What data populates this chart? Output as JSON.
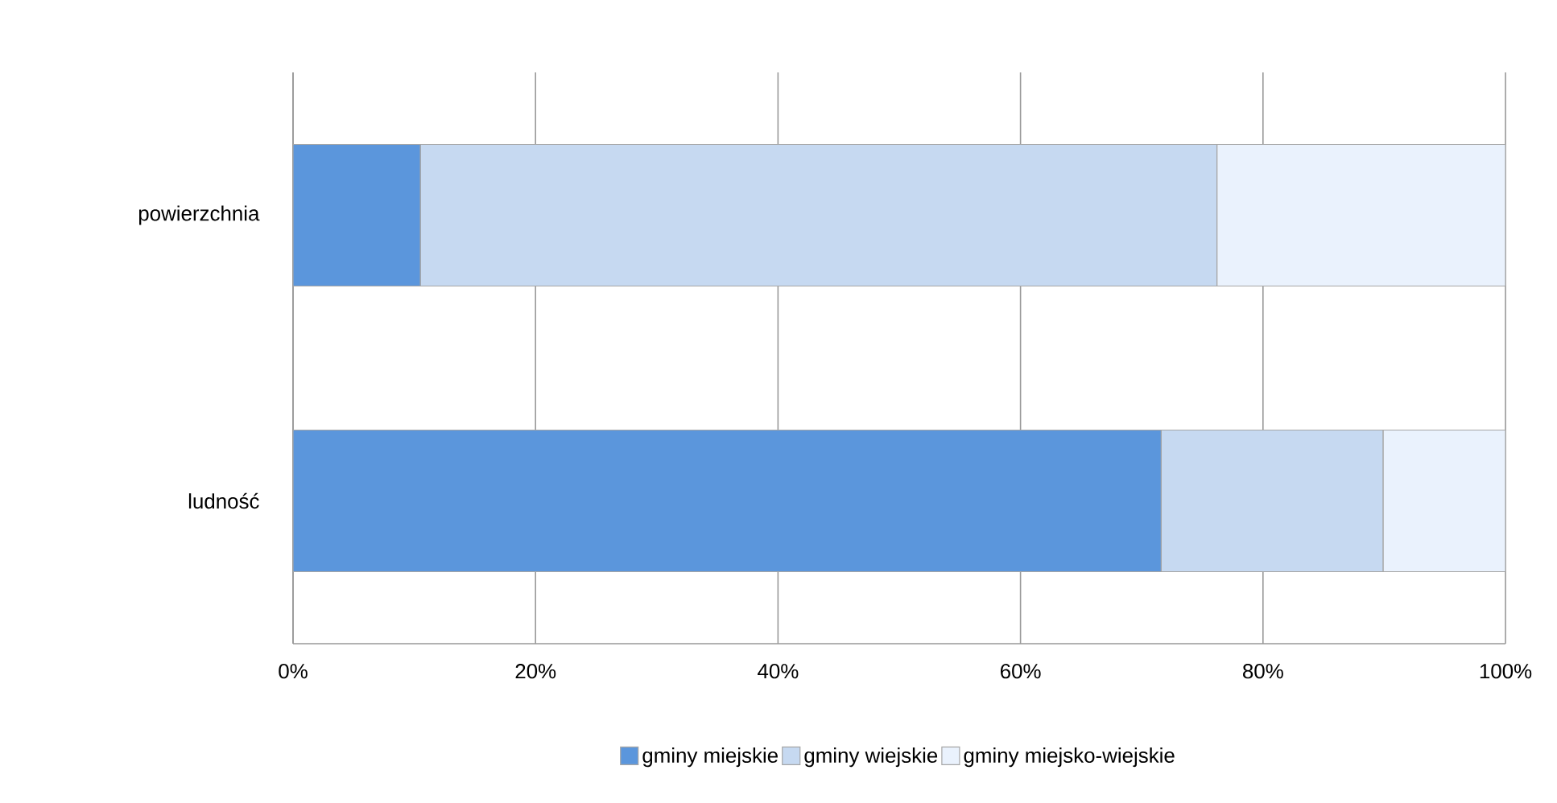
{
  "chart_data": {
    "type": "bar",
    "orientation": "horizontal",
    "stacked": true,
    "categories": [
      "powierzchnia",
      "ludność"
    ],
    "series": [
      {
        "name": "gminy miejskie",
        "color": "#5b96dc",
        "values": [
          10.5,
          71.6
        ]
      },
      {
        "name": "gminy wiejskie",
        "color": "#c6d9f1",
        "values": [
          65.7,
          18.3
        ]
      },
      {
        "name": "gminy miejsko-wiejskie",
        "color": "#eaf2fd",
        "values": [
          23.8,
          10.1
        ]
      }
    ],
    "xlim": [
      0,
      100
    ],
    "xticks": [
      {
        "value": 0,
        "label": "0%"
      },
      {
        "value": 20,
        "label": "20%"
      },
      {
        "value": 40,
        "label": "40%"
      },
      {
        "value": 60,
        "label": "60%"
      },
      {
        "value": 80,
        "label": "80%"
      },
      {
        "value": 100,
        "label": "100%"
      }
    ],
    "grid": "x",
    "legend": "bottom"
  }
}
